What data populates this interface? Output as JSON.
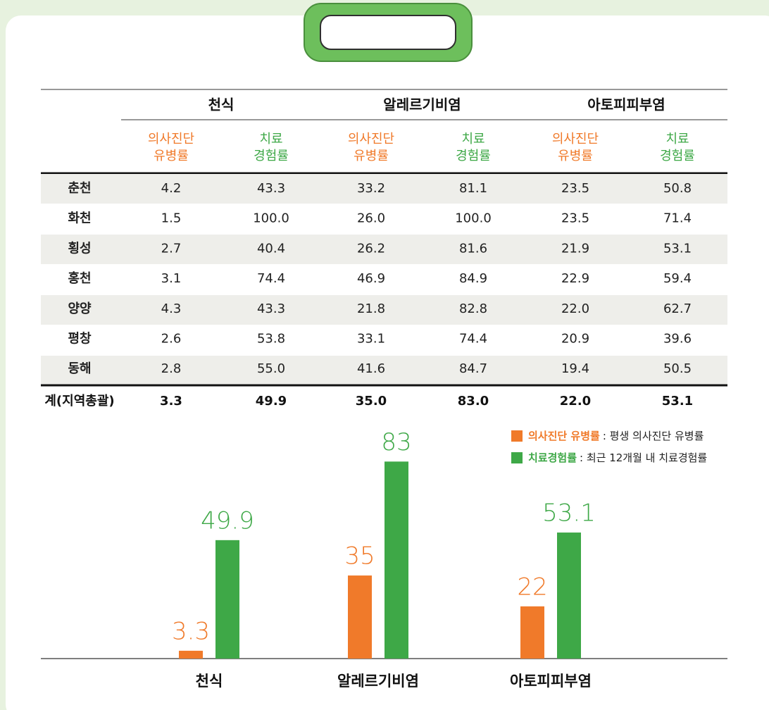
{
  "table": {
    "groups": [
      "천식",
      "알레르기비염",
      "아토피피부염"
    ],
    "subheaders": [
      [
        "의사진단",
        "유병률"
      ],
      [
        "치료",
        "경험률"
      ],
      [
        "의사진단",
        "유병률"
      ],
      [
        "치료",
        "경험률"
      ],
      [
        "의사진단",
        "유병률"
      ],
      [
        "치료",
        "경험률"
      ]
    ],
    "rows": [
      [
        "춘천",
        "4.2",
        "43.3",
        "33.2",
        "81.1",
        "23.5",
        "50.8"
      ],
      [
        "화천",
        "1.5",
        "100.0",
        "26.0",
        "100.0",
        "23.5",
        "71.4"
      ],
      [
        "횡성",
        "2.7",
        "40.4",
        "26.2",
        "81.6",
        "21.9",
        "53.1"
      ],
      [
        "홍천",
        "3.1",
        "74.4",
        "46.9",
        "84.9",
        "22.9",
        "59.4"
      ],
      [
        "양양",
        "4.3",
        "43.3",
        "21.8",
        "82.8",
        "22.0",
        "62.7"
      ],
      [
        "평창",
        "2.6",
        "53.8",
        "33.1",
        "74.4",
        "20.9",
        "39.6"
      ],
      [
        "동해",
        "2.8",
        "55.0",
        "41.6",
        "84.7",
        "19.4",
        "50.5"
      ]
    ],
    "total": [
      "계(지역총괄)",
      "3.3",
      "49.9",
      "35.0",
      "83.0",
      "22.0",
      "53.1"
    ]
  },
  "chart_data": {
    "type": "bar",
    "categories": [
      "천식",
      "알레르기비염",
      "아토피피부염"
    ],
    "series": [
      {
        "name": "의사진단 유병률",
        "color": "#f07a2a",
        "values": [
          3.3,
          35,
          22
        ]
      },
      {
        "name": "치료경험률",
        "color": "#3ea847",
        "values": [
          49.9,
          83,
          53.1
        ]
      }
    ],
    "legend_notes": [
      ": 평생 의사진단 유병률",
      ": 최근 12개월 내 치료경험률"
    ],
    "ylim": [
      0,
      100
    ]
  }
}
